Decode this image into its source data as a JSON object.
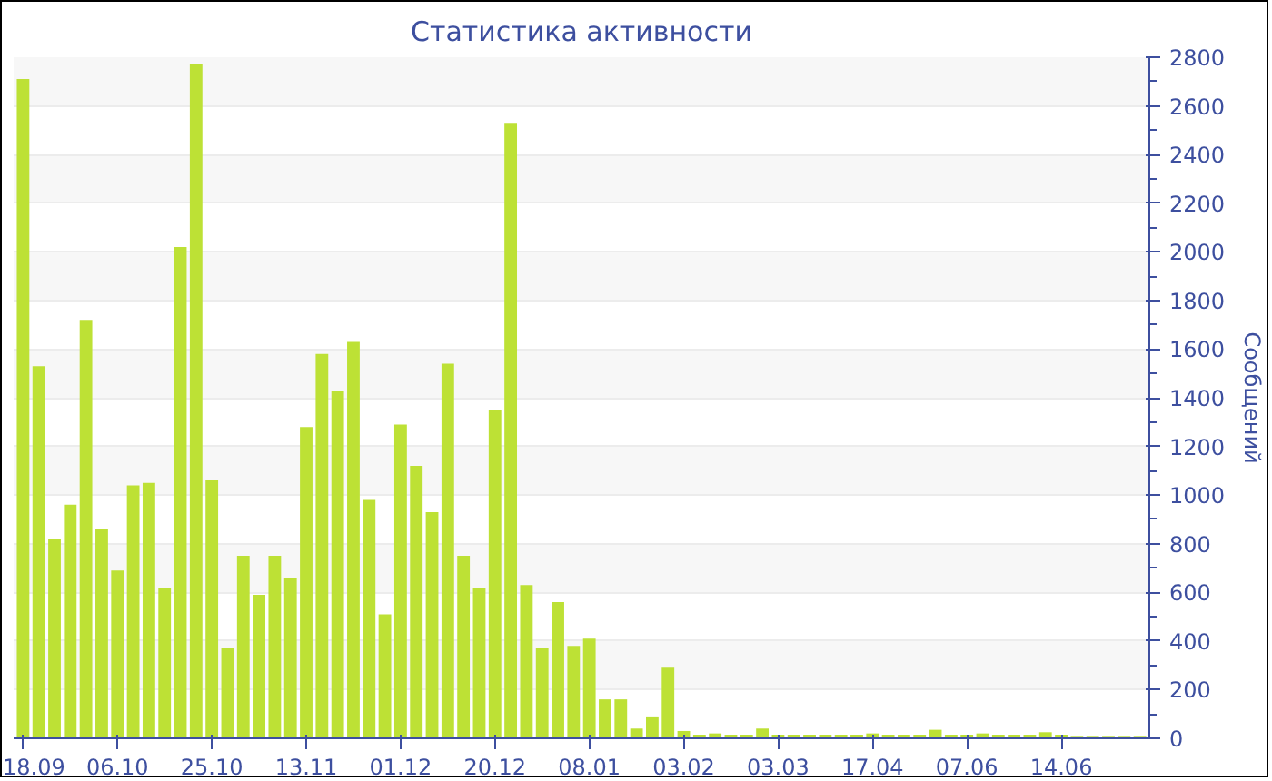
{
  "chart_data": {
    "type": "bar",
    "title": "Статистика активности",
    "ylabel": "Сообщений",
    "categories": [
      "18.09",
      null,
      null,
      null,
      null,
      null,
      "06.10",
      null,
      null,
      null,
      null,
      null,
      "25.10",
      null,
      null,
      null,
      null,
      null,
      "13.11",
      null,
      null,
      null,
      null,
      null,
      "01.12",
      null,
      null,
      null,
      null,
      null,
      "20.12",
      null,
      null,
      null,
      null,
      null,
      "08.01",
      null,
      null,
      null,
      null,
      null,
      "03.02",
      null,
      null,
      null,
      null,
      null,
      "03.03",
      null,
      null,
      null,
      null,
      null,
      "17.04",
      null,
      null,
      null,
      null,
      null,
      "07.06",
      null,
      null,
      null,
      null,
      null,
      "14.06",
      null,
      null,
      null,
      null,
      null
    ],
    "values": [
      2710,
      1530,
      820,
      960,
      1720,
      860,
      690,
      1040,
      1050,
      620,
      2020,
      2770,
      1060,
      370,
      750,
      590,
      750,
      660,
      1280,
      1580,
      1430,
      1630,
      980,
      510,
      1290,
      1120,
      930,
      1540,
      750,
      620,
      1350,
      2530,
      630,
      370,
      560,
      380,
      410,
      160,
      160,
      40,
      90,
      290,
      30,
      15,
      20,
      15,
      15,
      40,
      15,
      15,
      15,
      15,
      15,
      15,
      20,
      15,
      15,
      15,
      35,
      15,
      15,
      20,
      15,
      15,
      15,
      25,
      15,
      10,
      10,
      10,
      10,
      10
    ],
    "color": "#bde135",
    "ylim": [
      0,
      2800
    ],
    "yticks": [
      0,
      200,
      400,
      600,
      800,
      1000,
      1200,
      1400,
      1600,
      1800,
      2000,
      2200,
      2400,
      2600,
      2800
    ],
    "grid": "y"
  }
}
